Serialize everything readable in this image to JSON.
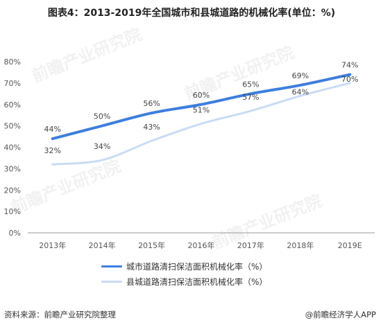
{
  "title": "图表4：2013-2019年全国城市和县城道路的机械化率(单位：%)",
  "source": "资料来源：前瞻产业研究院整理",
  "brand": "@前瞻经济学人APP",
  "watermark": "前瞻产业研究院",
  "chart_data": {
    "type": "line",
    "categories": [
      "2013年",
      "2014年",
      "2015年",
      "2016年",
      "2017年",
      "2018年",
      "2019E"
    ],
    "series": [
      {
        "name": "城市道路清扫保洁面积机械化率（%）",
        "values": [
          44,
          50,
          56,
          60,
          65,
          69,
          74
        ],
        "labels": [
          "44%",
          "50%",
          "56%",
          "60%",
          "65%",
          "69%",
          "74%"
        ],
        "color": "#3d7ee0"
      },
      {
        "name": "县城道路清扫保洁面积机械化率（%）",
        "values": [
          32,
          34,
          43,
          51,
          57,
          64,
          70
        ],
        "labels": [
          "32%",
          "34%",
          "43%",
          "51%",
          "57%",
          "64%",
          "70%"
        ],
        "color": "#c9dcf5"
      }
    ],
    "yticks": [
      "0%",
      "10%",
      "20%",
      "30%",
      "40%",
      "50%",
      "60%",
      "70%",
      "80%"
    ],
    "ylim": [
      0,
      80
    ],
    "grid": false,
    "legend": "bottom"
  }
}
